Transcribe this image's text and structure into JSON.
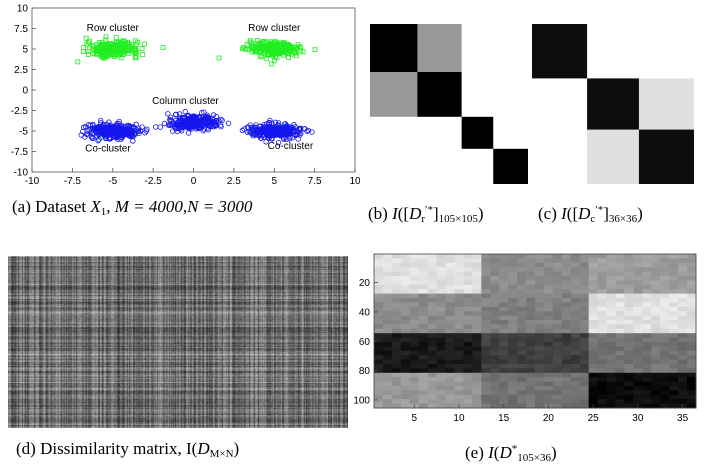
{
  "figure": {
    "panel_a": {
      "caption": "(a) Dataset X1, M = 4000, N = 3000",
      "caption_parts": {
        "label": "(a) Dataset ",
        "var": "X",
        "sub": "1",
        "rest": ", M = 4000,N = 3000"
      },
      "annotations": [
        "Row cluster",
        "Row cluster",
        "Column cluster",
        "Co-cluster",
        "Co-cluster"
      ]
    },
    "panel_b": {
      "caption_label": "(b) ",
      "caption_func": "I",
      "caption_inner": "[D",
      "caption_sub_r": "r",
      "caption_sup": "′*",
      "caption_size": "105×105"
    },
    "panel_c": {
      "caption_label": "(c) ",
      "caption_func": "I",
      "caption_inner": "[D",
      "caption_sub_c": "c",
      "caption_sup": "′*",
      "caption_size": "36×36"
    },
    "panel_d": {
      "caption_label": "(d) Dissimilarity matrix, I(",
      "caption_var": "D",
      "caption_sub": "M×N",
      "caption_close": ")"
    },
    "panel_e": {
      "caption_label": "(e) ",
      "caption_func": "I",
      "caption_var": "D",
      "caption_sup": "*",
      "caption_sub": "105×36"
    }
  },
  "colors": {
    "green": "#22ee22",
    "blue": "#1515ee",
    "axis": "#222222"
  },
  "chart_data": [
    {
      "type": "scatter",
      "title": "",
      "xlabel": "",
      "ylabel": "",
      "xlim": [
        -10,
        10
      ],
      "ylim": [
        -10,
        10
      ],
      "x_ticks": [
        -10,
        -7.5,
        -5,
        -2.5,
        0,
        2.5,
        5,
        7.5,
        10
      ],
      "y_ticks": [
        10,
        7.5,
        5,
        2.5,
        0,
        -2.5,
        -5,
        -7.5,
        -10
      ],
      "series": [
        {
          "color": "green",
          "marker": "square",
          "clusters": [
            {
              "center": [
                -5,
                5
              ],
              "spread": [
                0.8,
                0.45
              ]
            },
            {
              "center": [
                5,
                5
              ],
              "spread": [
                0.8,
                0.45
              ]
            },
            {
              "center": [
                -5,
                -5
              ],
              "spread": [
                0.6,
                0.3
              ]
            },
            {
              "center": [
                5,
                -5
              ],
              "spread": [
                0.6,
                0.3
              ]
            }
          ]
        },
        {
          "color": "blue",
          "marker": "circle",
          "clusters": [
            {
              "center": [
                -5,
                -5
              ],
              "spread": [
                0.8,
                0.45
              ]
            },
            {
              "center": [
                0,
                -4
              ],
              "spread": [
                0.8,
                0.45
              ]
            },
            {
              "center": [
                5,
                -5
              ],
              "spread": [
                0.8,
                0.45
              ]
            }
          ]
        }
      ],
      "annotations": [
        {
          "text": "Row cluster",
          "x": -5,
          "y": 7.2
        },
        {
          "text": "Row cluster",
          "x": 5,
          "y": 7.2
        },
        {
          "text": "Column cluster",
          "x": -0.5,
          "y": -1.7
        },
        {
          "text": "Co-cluster",
          "x": -5.3,
          "y": -7.5
        },
        {
          "text": "Co-cluster",
          "x": 6,
          "y": -7.2
        }
      ]
    },
    {
      "type": "heatmap",
      "name": "I([D'r*]105x105)",
      "blocks": "gray levels (0=black, 1=white) of a 4x4 block matrix",
      "block_sizes": [
        0.3,
        0.28,
        0.2,
        0.22
      ],
      "levels": [
        [
          0,
          0.6,
          1,
          1
        ],
        [
          0.6,
          0,
          1,
          1
        ],
        [
          1,
          1,
          0,
          1
        ],
        [
          1,
          1,
          1,
          0
        ]
      ]
    },
    {
      "type": "heatmap",
      "name": "I([D'c*]36x36)",
      "block_sizes": [
        0.34,
        0.32,
        0.34
      ],
      "levels": [
        [
          0.05,
          1,
          1
        ],
        [
          1,
          0.05,
          0.88
        ],
        [
          1,
          0.88,
          0.05
        ]
      ]
    },
    {
      "type": "heatmap",
      "name": "I(D M x N)",
      "note": "noisy gray texture"
    },
    {
      "type": "heatmap",
      "name": "I(D* 105x36)",
      "x_ticks": [
        5,
        10,
        15,
        20,
        25,
        30,
        35
      ],
      "y_ticks": [
        20,
        40,
        60,
        80,
        100
      ],
      "xlim": [
        0.5,
        36.5
      ],
      "ylim": [
        0.5,
        105.5
      ],
      "row_bands": [
        25,
        29,
        27,
        24
      ],
      "col_bands": [
        12,
        12,
        12
      ],
      "levels": [
        [
          0.88,
          0.55,
          0.62
        ],
        [
          0.55,
          0.5,
          0.88
        ],
        [
          0.1,
          0.25,
          0.45
        ],
        [
          0.6,
          0.45,
          0.05
        ]
      ]
    }
  ]
}
